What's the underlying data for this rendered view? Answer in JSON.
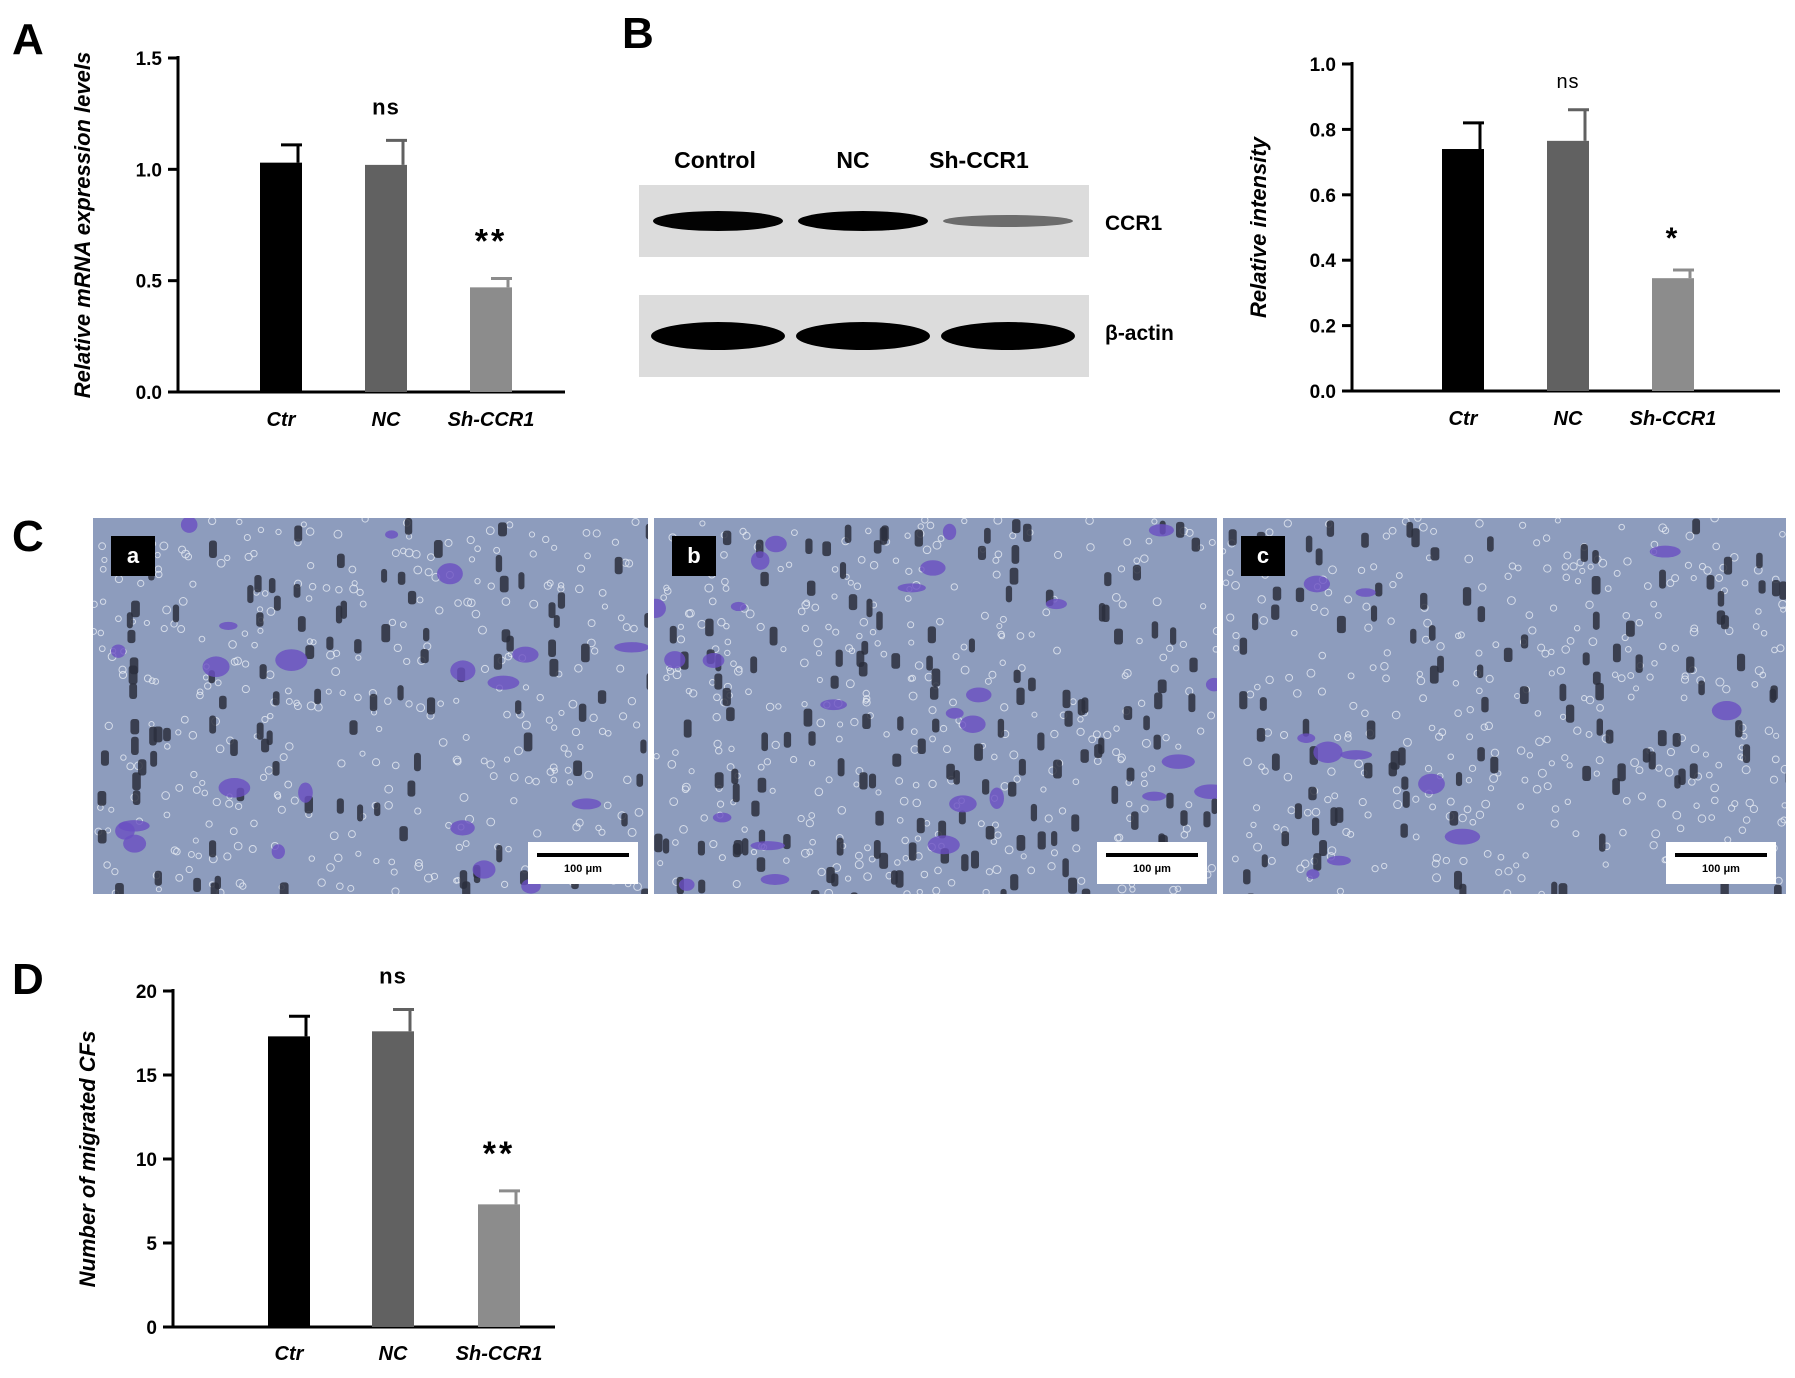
{
  "panels": {
    "A": {
      "letter": "A"
    },
    "B": {
      "letter": "B"
    },
    "C": {
      "letter": "C"
    },
    "D": {
      "letter": "D"
    }
  },
  "western_blot": {
    "lane_labels": [
      "Control",
      "NC",
      "Sh-CCR1"
    ],
    "row_labels": [
      "CCR1",
      "β-actin"
    ],
    "band_intensity": {
      "CCR1": [
        0.74,
        0.77,
        0.35
      ],
      "beta_actin": [
        1.0,
        1.0,
        1.0
      ]
    }
  },
  "micrographs": [
    {
      "label": "a",
      "scale_bar": "100 μm"
    },
    {
      "label": "b",
      "scale_bar": "100 μm"
    },
    {
      "label": "c",
      "scale_bar": "100 μm"
    }
  ],
  "colors": {
    "bar_ctr": "#000000",
    "bar_nc": "#616161",
    "bar_sh": "#8c8c8c",
    "micrograph_background": "#8d9cbd",
    "stained_cells": "#6a4fc2"
  },
  "chart_data": [
    {
      "panel": "A",
      "type": "bar",
      "categories": [
        "Ctr",
        "NC",
        "Sh-CCR1"
      ],
      "values": [
        1.03,
        1.02,
        0.47
      ],
      "errors": [
        0.08,
        0.11,
        0.04
      ],
      "annotations": [
        "",
        "ns",
        "**"
      ],
      "xlabel": "",
      "ylabel": "Relative mRNA expression levels",
      "ylim": [
        0,
        1.5
      ],
      "yticks": [
        0.0,
        0.5,
        1.0,
        1.5
      ],
      "ytick_labels": [
        "0.0",
        "0.5",
        "1.0",
        "1.5"
      ]
    },
    {
      "panel": "B",
      "type": "bar",
      "categories": [
        "Ctr",
        "NC",
        "Sh-CCR1"
      ],
      "values": [
        0.74,
        0.765,
        0.345
      ],
      "errors": [
        0.08,
        0.095,
        0.025
      ],
      "annotations": [
        "",
        "ns",
        "*"
      ],
      "xlabel": "",
      "ylabel": "Relative intensity",
      "ylim": [
        0,
        1.0
      ],
      "yticks": [
        0.0,
        0.2,
        0.4,
        0.6,
        0.8,
        1.0
      ],
      "ytick_labels": [
        "0.0",
        "0.2",
        "0.4",
        "0.6",
        "0.8",
        "1.0"
      ]
    },
    {
      "panel": "D",
      "type": "bar",
      "categories": [
        "Ctr",
        "NC",
        "Sh-CCR1"
      ],
      "values": [
        17.3,
        17.6,
        7.3
      ],
      "errors": [
        1.2,
        1.3,
        0.8
      ],
      "annotations": [
        "",
        "ns",
        "**"
      ],
      "xlabel": "",
      "ylabel": "Number of migrated CFs",
      "ylim": [
        0,
        20
      ],
      "yticks": [
        0,
        5,
        10,
        15,
        20
      ],
      "ytick_labels": [
        "0",
        "5",
        "10",
        "15",
        "20"
      ]
    }
  ]
}
